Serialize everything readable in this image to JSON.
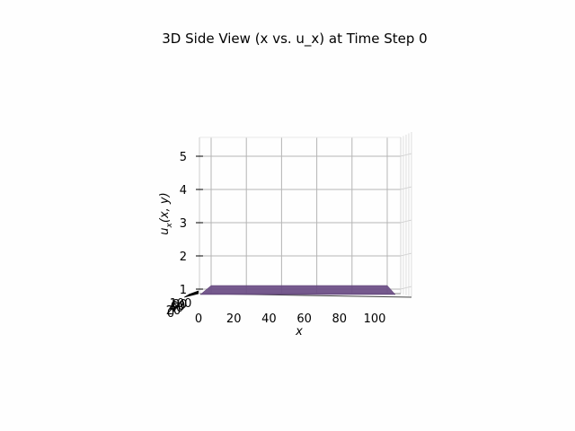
{
  "chart_data": {
    "type": "surface-3d",
    "title": "3D Side View (x vs. u_x) at Time Step 0",
    "xlabel": "x",
    "ylabel_pre": "u",
    "ylabel_sub": "x",
    "ylabel_post": "(x, y)",
    "x_ticks": [
      "0",
      "20",
      "40",
      "60",
      "80",
      "100"
    ],
    "z_ticks": [
      "1",
      "2",
      "3",
      "4",
      "5"
    ],
    "y_ticks": [
      "0",
      "20",
      "40",
      "60",
      "80",
      "100"
    ],
    "xlim": [
      0,
      100
    ],
    "zlim": [
      0.75,
      5.7
    ],
    "surface": {
      "x_range": [
        0,
        100
      ],
      "value": 1.0,
      "color": "#6a4c84"
    },
    "grid": true
  }
}
